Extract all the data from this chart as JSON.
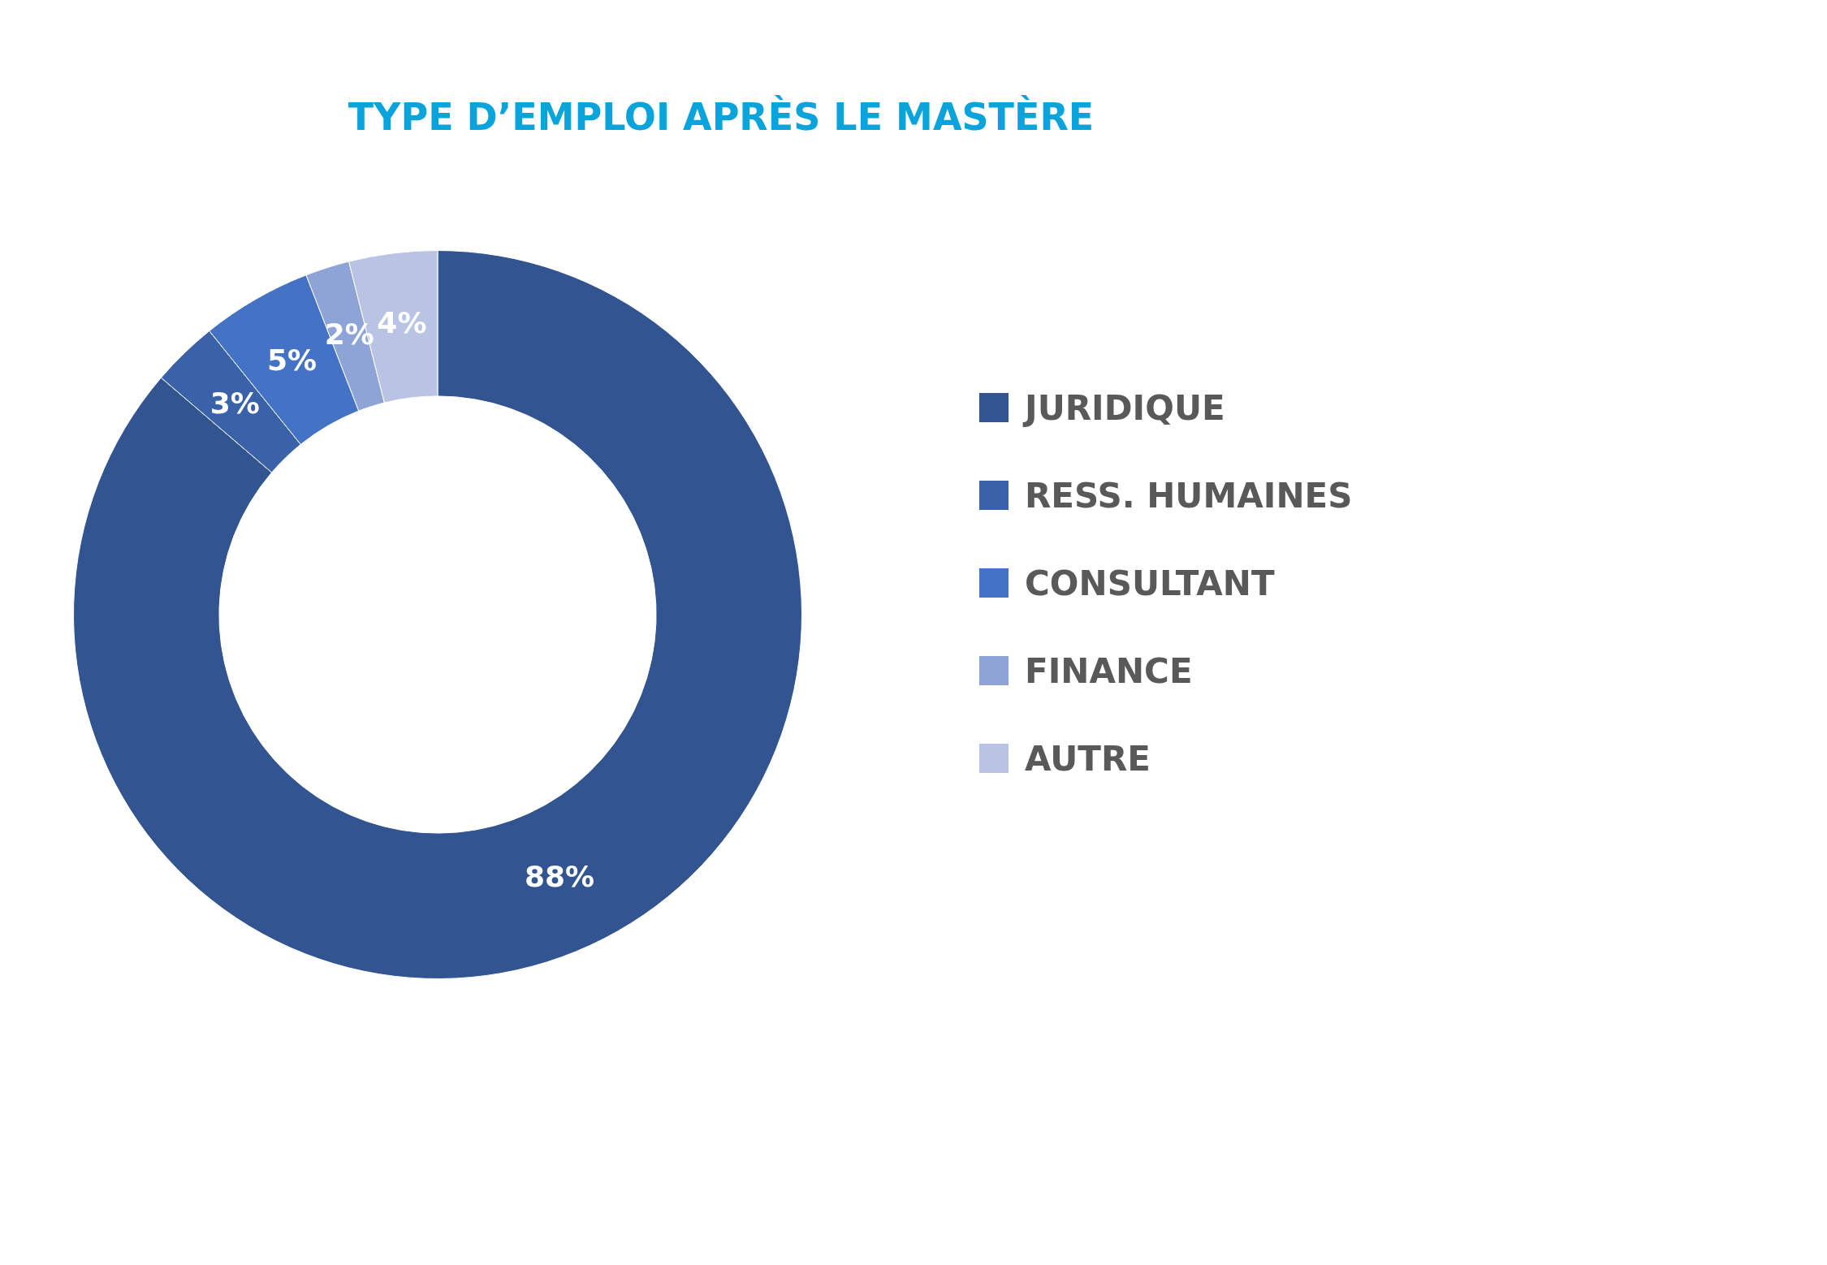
{
  "chart_data": {
    "type": "donut",
    "title": "TYPE D’EMPLOI APRÈS LE MASTÈRE",
    "categories": [
      "JURIDIQUE",
      "RESS. HUMAINES",
      "CONSULTANT",
      "FINANCE",
      "AUTRE"
    ],
    "values": [
      88,
      3,
      5,
      2,
      4
    ],
    "colors": [
      "#325591",
      "#3a62a8",
      "#4472c4",
      "#8fa4d6",
      "#b9c4e4"
    ],
    "value_labels": [
      "88%",
      "3%",
      "5%",
      "2%",
      "4%"
    ],
    "legend": "right"
  }
}
